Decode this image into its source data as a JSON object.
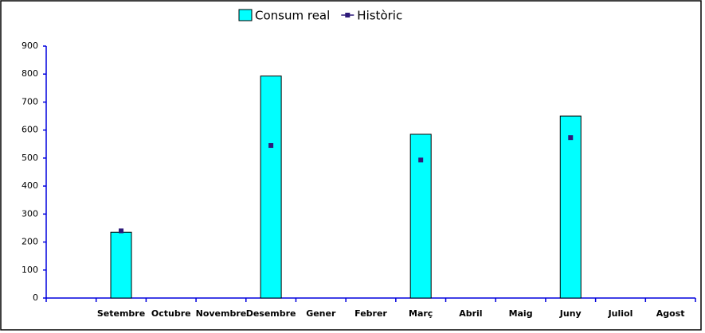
{
  "chart_data": {
    "type": "bar",
    "categories": [
      null,
      "Setembre",
      "Octubre",
      "Novembre",
      "Desembre",
      "Gener",
      "Febrer",
      "Març",
      "Abril",
      "Maig",
      "Juny",
      "Juliol",
      "Agost"
    ],
    "series": [
      {
        "name": "Consum real",
        "type": "bar",
        "color": "#00ffff",
        "values": [
          null,
          235,
          null,
          null,
          793,
          null,
          null,
          585,
          null,
          null,
          650,
          null,
          null
        ]
      },
      {
        "name": "Històric",
        "type": "marker",
        "color": "#2e1a7a",
        "values": [
          null,
          240,
          null,
          null,
          545,
          null,
          null,
          493,
          null,
          null,
          573,
          null,
          null
        ]
      }
    ],
    "ylim": [
      0,
      900
    ],
    "yticks": [
      0,
      100,
      200,
      300,
      400,
      500,
      600,
      700,
      800,
      900
    ],
    "legend": "top"
  }
}
